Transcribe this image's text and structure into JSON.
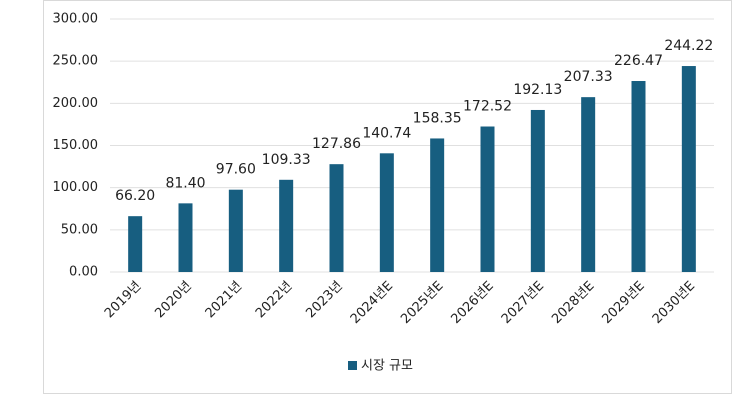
{
  "chart_data": {
    "type": "bar",
    "categories": [
      "2019년",
      "2020년",
      "2021년",
      "2022년",
      "2023년",
      "2024년E",
      "2025년E",
      "2026년E",
      "2027년E",
      "2028년E",
      "2029년E",
      "2030년E"
    ],
    "series": [
      {
        "name": "시장 규모",
        "color": "#175e80",
        "values": [
          66.2,
          81.4,
          97.6,
          109.33,
          127.86,
          140.74,
          158.35,
          172.52,
          192.13,
          207.33,
          226.47,
          244.22
        ],
        "value_labels": [
          "66.20",
          "81.40",
          "97.60",
          "109.33",
          "127.86",
          "140.74",
          "158.35",
          "172.52",
          "192.13",
          "207.33",
          "226.47",
          "244.22"
        ]
      }
    ],
    "ylim": [
      0,
      300
    ],
    "yticks": [
      {
        "value": 0,
        "label": "0.00"
      },
      {
        "value": 50,
        "label": "50.00"
      },
      {
        "value": 100,
        "label": "100.00"
      },
      {
        "value": 150,
        "label": "150.00"
      },
      {
        "value": 200,
        "label": "200.00"
      },
      {
        "value": 250,
        "label": "250.00"
      },
      {
        "value": 300,
        "label": "300.00"
      }
    ],
    "grid": true,
    "legend": "bottom"
  }
}
